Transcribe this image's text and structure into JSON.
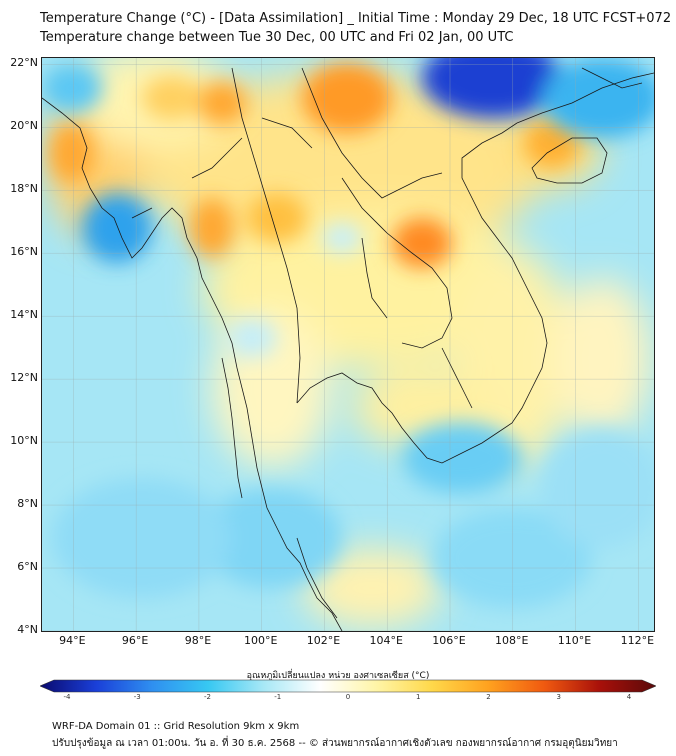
{
  "header": {
    "title_line1": "Temperature Change (°C) - [Data Assimilation] _ Initial Time : Monday 29 Dec, 18 UTC FCST+072",
    "title_line2": "Temperature change between Tue 30 Dec, 00 UTC and Fri 02 Jan, 00 UTC"
  },
  "axes": {
    "lat_labels": [
      "22°N",
      "20°N",
      "18°N",
      "16°N",
      "14°N",
      "12°N",
      "10°N",
      "8°N",
      "6°N",
      "4°N"
    ],
    "lat_values": [
      22,
      20,
      18,
      16,
      14,
      12,
      10,
      8,
      6,
      4
    ],
    "lon_labels": [
      "94°E",
      "96°E",
      "98°E",
      "100°E",
      "102°E",
      "104°E",
      "106°E",
      "108°E",
      "110°E",
      "112°E"
    ],
    "lon_values": [
      94,
      96,
      98,
      100,
      102,
      104,
      106,
      108,
      110,
      112
    ],
    "lat_range": [
      4,
      22.2
    ],
    "lon_range": [
      93,
      112.5
    ]
  },
  "colorbar": {
    "title": "อุณหภูมิเปลี่ยนแปลง หน่วย องศาเซลเซียส (°C)",
    "tick_labels": [
      "-4",
      "-3",
      "-2",
      "-1",
      "0",
      "1",
      "2",
      "3",
      "4"
    ],
    "range": [
      -4,
      4
    ],
    "colors": [
      "#0a0a6e",
      "#1a3fd8",
      "#2f8ff0",
      "#37c8f2",
      "#a8e8f6",
      "#ffffff",
      "#fff5a8",
      "#ffd84a",
      "#ffa21f",
      "#f05a10",
      "#a8100a",
      "#5a0a0a"
    ]
  },
  "footer": {
    "line1": "WRF-DA Domain 01 :: Grid Resolution 9km x 9km",
    "line2": "ปรับปรุงข้อมูล ณ เวลา 01:00น. วัน อ. ที่ 30 ธ.ค. 2568 -- © ส่วนพยากรณ์อากาศเชิงตัวเลข กองพยากรณ์อากาศ กรมอุตุนิยมวิทยา"
  }
}
